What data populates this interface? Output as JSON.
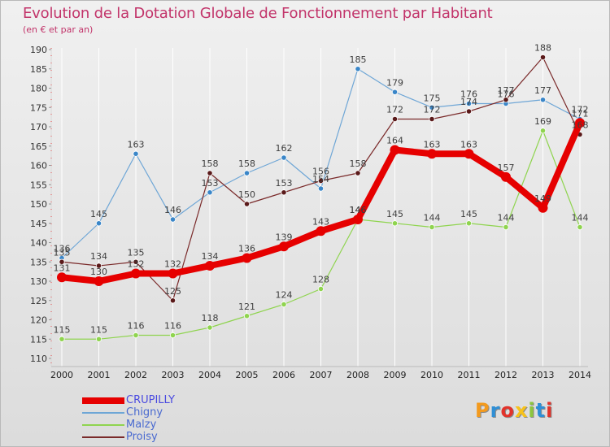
{
  "title": "Evolution de la Dotation Globale de Fonctionnement par Habitant",
  "subtitle": "(en € et par an)",
  "brand": "Proxiti",
  "colors": {
    "title": "#c2346a",
    "crupilly": "#e60000",
    "chigny": "#6ea6d6",
    "malzy": "#8fd44f",
    "proisy": "#7a2a2a",
    "chigny_marker": "#3a86c8",
    "malzy_marker": "#8fd44f",
    "proisy_marker": "#5a1a1a"
  },
  "chart_data": {
    "type": "line",
    "title": "Evolution de la Dotation Globale de Fonctionnement par Habitant",
    "subtitle": "(en € et par an)",
    "xlabel": "",
    "ylabel": "",
    "ylim": [
      110,
      190
    ],
    "y_ticks": [
      110,
      115,
      120,
      125,
      130,
      135,
      140,
      145,
      150,
      155,
      160,
      165,
      170,
      175,
      180,
      185,
      190
    ],
    "x": [
      "2000",
      "2001",
      "2002",
      "2003",
      "2004",
      "2005",
      "2006",
      "2007",
      "2008",
      "2009",
      "2010",
      "2011",
      "2012",
      "2013",
      "2014"
    ],
    "grid": "vertical",
    "legend_position": "bottom-left",
    "series": [
      {
        "name": "CRUPILLY",
        "key": "crupilly",
        "values": [
          131,
          130,
          132,
          132,
          134,
          136,
          139,
          143,
          146,
          164,
          163,
          163,
          157,
          149,
          171
        ]
      },
      {
        "name": "Chigny",
        "key": "chigny",
        "values": [
          136,
          145,
          163,
          146,
          153,
          158,
          162,
          154,
          185,
          179,
          175,
          176,
          176,
          177,
          172
        ]
      },
      {
        "name": "Malzy",
        "key": "malzy",
        "values": [
          115,
          115,
          116,
          116,
          118,
          121,
          124,
          128,
          146,
          145,
          144,
          145,
          144,
          169,
          144
        ]
      },
      {
        "name": "Proisy",
        "key": "proisy",
        "values": [
          135,
          134,
          135,
          125,
          158,
          150,
          153,
          156,
          158,
          172,
          172,
          174,
          177,
          188,
          168
        ]
      }
    ]
  }
}
